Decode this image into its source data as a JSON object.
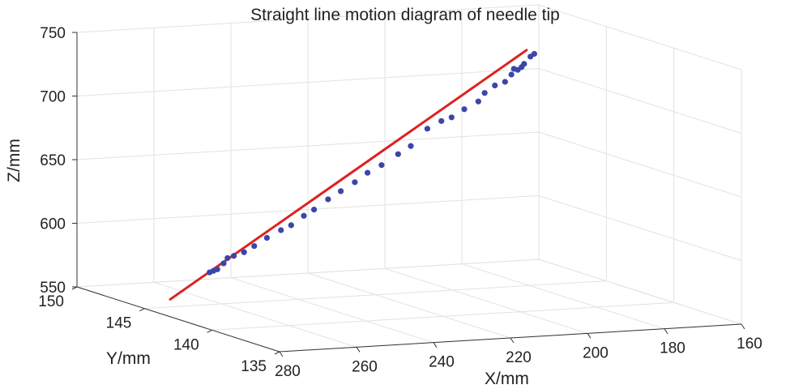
{
  "chart_data": {
    "type": "scatter",
    "view": "3d",
    "title": "Straight line motion diagram of needle tip",
    "xlabel": "X/mm",
    "ylabel": "Y/mm",
    "zlabel": "Z/mm",
    "xlim": [
      160,
      280
    ],
    "ylim": [
      135,
      150
    ],
    "zlim": [
      550,
      750
    ],
    "xticks": [
      "280",
      "260",
      "240",
      "220",
      "200",
      "180",
      "160"
    ],
    "yticks": [
      "150",
      "145",
      "140",
      "135"
    ],
    "zticks": [
      "750",
      "700",
      "650",
      "600",
      "550"
    ],
    "grid": true,
    "colors": {
      "points": "#3a46a8",
      "fit_line": "#dd2222"
    },
    "fit_line": {
      "x": [
        280,
        173
      ],
      "y": [
        143.1,
        147.2
      ],
      "z": [
        563.6,
        726.3
      ]
    },
    "points": [
      {
        "x": 268,
        "y": 143.6,
        "z": 581
      },
      {
        "x": 267,
        "y": 143.6,
        "z": 582
      },
      {
        "x": 266,
        "y": 143.6,
        "z": 583
      },
      {
        "x": 264,
        "y": 143.7,
        "z": 587
      },
      {
        "x": 263,
        "y": 143.7,
        "z": 591
      },
      {
        "x": 261,
        "y": 143.8,
        "z": 592
      },
      {
        "x": 258,
        "y": 143.9,
        "z": 594
      },
      {
        "x": 255,
        "y": 144.0,
        "z": 598
      },
      {
        "x": 251,
        "y": 144.2,
        "z": 603
      },
      {
        "x": 247,
        "y": 144.3,
        "z": 608
      },
      {
        "x": 244,
        "y": 144.4,
        "z": 611
      },
      {
        "x": 240,
        "y": 144.6,
        "z": 617
      },
      {
        "x": 237,
        "y": 144.7,
        "z": 621
      },
      {
        "x": 233,
        "y": 144.8,
        "z": 628
      },
      {
        "x": 229,
        "y": 145.0,
        "z": 633
      },
      {
        "x": 225,
        "y": 145.1,
        "z": 639
      },
      {
        "x": 221,
        "y": 145.3,
        "z": 645
      },
      {
        "x": 217,
        "y": 145.4,
        "z": 650
      },
      {
        "x": 212,
        "y": 145.6,
        "z": 657
      },
      {
        "x": 208,
        "y": 145.8,
        "z": 662
      },
      {
        "x": 203,
        "y": 146.0,
        "z": 674
      },
      {
        "x": 199,
        "y": 146.1,
        "z": 679
      },
      {
        "x": 196,
        "y": 146.2,
        "z": 681
      },
      {
        "x": 192,
        "y": 146.4,
        "z": 686
      },
      {
        "x": 188,
        "y": 146.5,
        "z": 691
      },
      {
        "x": 186,
        "y": 146.6,
        "z": 697
      },
      {
        "x": 183,
        "y": 146.7,
        "z": 702
      },
      {
        "x": 180,
        "y": 146.8,
        "z": 704
      },
      {
        "x": 178,
        "y": 146.9,
        "z": 709
      },
      {
        "x": 177,
        "y": 147.0,
        "z": 713
      },
      {
        "x": 176,
        "y": 147.0,
        "z": 712
      },
      {
        "x": 175,
        "y": 147.0,
        "z": 714
      },
      {
        "x": 174,
        "y": 147.1,
        "z": 716
      },
      {
        "x": 172,
        "y": 147.2,
        "z": 721
      },
      {
        "x": 171,
        "y": 147.2,
        "z": 723
      }
    ]
  }
}
